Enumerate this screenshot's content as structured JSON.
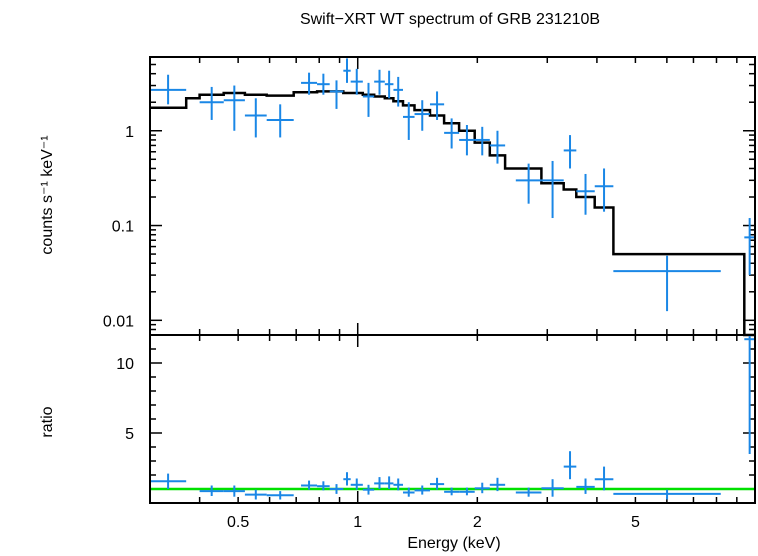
{
  "chart_data": [
    {
      "type": "scatter",
      "title": "Swift−XRT WT spectrum of GRB 231210B",
      "ylabel": "counts s⁻¹ keV⁻¹",
      "xscale": "log",
      "yscale": "log",
      "xlim": [
        0.3,
        10
      ],
      "ylim": [
        0.007,
        6
      ],
      "yticks": [
        {
          "v": 0.01,
          "label": "0.01"
        },
        {
          "v": 0.1,
          "label": "0.1"
        },
        {
          "v": 1,
          "label": "1"
        }
      ],
      "colors": {
        "data": "#1a87e6",
        "model": "#000000"
      },
      "series": [
        {
          "kind": "data",
          "points": [
            {
              "xlo": 0.3,
              "xhi": 0.37,
              "y": 2.7,
              "ylo": 1.9,
              "yhi": 3.9
            },
            {
              "xlo": 0.4,
              "xhi": 0.46,
              "y": 2.0,
              "ylo": 1.3,
              "yhi": 2.9
            },
            {
              "xlo": 0.46,
              "xhi": 0.52,
              "y": 2.1,
              "ylo": 1.0,
              "yhi": 3.0
            },
            {
              "xlo": 0.52,
              "xhi": 0.59,
              "y": 1.45,
              "ylo": 0.85,
              "yhi": 2.2
            },
            {
              "xlo": 0.59,
              "xhi": 0.69,
              "y": 1.3,
              "ylo": 0.85,
              "yhi": 1.9
            },
            {
              "xlo": 0.72,
              "xhi": 0.79,
              "y": 3.2,
              "ylo": 2.4,
              "yhi": 4.1
            },
            {
              "xlo": 0.79,
              "xhi": 0.85,
              "y": 3.1,
              "ylo": 2.4,
              "yhi": 4.0
            },
            {
              "xlo": 0.85,
              "xhi": 0.92,
              "y": 2.6,
              "ylo": 1.7,
              "yhi": 3.4
            },
            {
              "xlo": 0.92,
              "xhi": 0.96,
              "y": 4.3,
              "ylo": 3.2,
              "yhi": 5.8
            },
            {
              "xlo": 0.96,
              "xhi": 1.03,
              "y": 3.3,
              "ylo": 2.4,
              "yhi": 4.5
            },
            {
              "xlo": 1.03,
              "xhi": 1.1,
              "y": 2.3,
              "ylo": 1.4,
              "yhi": 3.2
            },
            {
              "xlo": 1.1,
              "xhi": 1.17,
              "y": 3.3,
              "ylo": 2.4,
              "yhi": 4.4
            },
            {
              "xlo": 1.17,
              "xhi": 1.23,
              "y": 3.1,
              "ylo": 2.2,
              "yhi": 4.3
            },
            {
              "xlo": 1.23,
              "xhi": 1.3,
              "y": 2.7,
              "ylo": 1.8,
              "yhi": 3.7
            },
            {
              "xlo": 1.3,
              "xhi": 1.39,
              "y": 1.4,
              "ylo": 0.8,
              "yhi": 2.0
            },
            {
              "xlo": 1.39,
              "xhi": 1.52,
              "y": 1.5,
              "ylo": 1.0,
              "yhi": 2.1
            },
            {
              "xlo": 1.52,
              "xhi": 1.65,
              "y": 1.9,
              "ylo": 1.3,
              "yhi": 2.6
            },
            {
              "xlo": 1.65,
              "xhi": 1.8,
              "y": 0.95,
              "ylo": 0.65,
              "yhi": 1.35
            },
            {
              "xlo": 1.8,
              "xhi": 1.97,
              "y": 0.8,
              "ylo": 0.55,
              "yhi": 1.15
            },
            {
              "xlo": 1.97,
              "xhi": 2.15,
              "y": 0.8,
              "ylo": 0.55,
              "yhi": 1.1
            },
            {
              "xlo": 2.15,
              "xhi": 2.35,
              "y": 0.7,
              "ylo": 0.45,
              "yhi": 1.0
            },
            {
              "xlo": 2.5,
              "xhi": 2.9,
              "y": 0.3,
              "ylo": 0.17,
              "yhi": 0.45
            },
            {
              "xlo": 2.9,
              "xhi": 3.3,
              "y": 0.3,
              "ylo": 0.12,
              "yhi": 0.48
            },
            {
              "xlo": 3.3,
              "xhi": 3.55,
              "y": 0.62,
              "ylo": 0.4,
              "yhi": 0.9
            },
            {
              "xlo": 3.55,
              "xhi": 3.95,
              "y": 0.23,
              "ylo": 0.13,
              "yhi": 0.35
            },
            {
              "xlo": 3.95,
              "xhi": 4.4,
              "y": 0.26,
              "ylo": 0.14,
              "yhi": 0.4
            },
            {
              "xlo": 4.4,
              "xhi": 8.2,
              "y": 0.033,
              "ylo": 0.0125,
              "yhi": 0.048
            },
            {
              "xlo": 9.4,
              "xhi": 10.0,
              "y": 0.075,
              "ylo": 0.03,
              "yhi": 0.12
            }
          ]
        },
        {
          "kind": "model",
          "steps": [
            {
              "xlo": 0.3,
              "xhi": 0.37,
              "y": 1.75
            },
            {
              "xlo": 0.37,
              "xhi": 0.4,
              "y": 2.2
            },
            {
              "xlo": 0.4,
              "xhi": 0.46,
              "y": 2.4
            },
            {
              "xlo": 0.46,
              "xhi": 0.52,
              "y": 2.5
            },
            {
              "xlo": 0.52,
              "xhi": 0.59,
              "y": 2.4
            },
            {
              "xlo": 0.59,
              "xhi": 0.69,
              "y": 2.35
            },
            {
              "xlo": 0.69,
              "xhi": 0.79,
              "y": 2.55
            },
            {
              "xlo": 0.79,
              "xhi": 0.92,
              "y": 2.6
            },
            {
              "xlo": 0.92,
              "xhi": 1.03,
              "y": 2.5
            },
            {
              "xlo": 1.03,
              "xhi": 1.1,
              "y": 2.4
            },
            {
              "xlo": 1.1,
              "xhi": 1.17,
              "y": 2.3
            },
            {
              "xlo": 1.17,
              "xhi": 1.23,
              "y": 2.2
            },
            {
              "xlo": 1.23,
              "xhi": 1.3,
              "y": 2.05
            },
            {
              "xlo": 1.3,
              "xhi": 1.39,
              "y": 1.85
            },
            {
              "xlo": 1.39,
              "xhi": 1.52,
              "y": 1.65
            },
            {
              "xlo": 1.52,
              "xhi": 1.65,
              "y": 1.45
            },
            {
              "xlo": 1.65,
              "xhi": 1.8,
              "y": 1.2
            },
            {
              "xlo": 1.8,
              "xhi": 1.97,
              "y": 1.0
            },
            {
              "xlo": 1.97,
              "xhi": 2.15,
              "y": 0.75
            },
            {
              "xlo": 2.15,
              "xhi": 2.35,
              "y": 0.55
            },
            {
              "xlo": 2.35,
              "xhi": 2.9,
              "y": 0.4
            },
            {
              "xlo": 2.9,
              "xhi": 3.3,
              "y": 0.28
            },
            {
              "xlo": 3.3,
              "xhi": 3.55,
              "y": 0.24
            },
            {
              "xlo": 3.55,
              "xhi": 3.95,
              "y": 0.2
            },
            {
              "xlo": 3.95,
              "xhi": 4.4,
              "y": 0.155
            },
            {
              "xlo": 4.4,
              "xhi": 9.4,
              "y": 0.05
            },
            {
              "xlo": 9.4,
              "xhi": 10.0,
              "y": 0.0001
            }
          ]
        }
      ]
    },
    {
      "type": "scatter",
      "xlabel": "Energy (keV)",
      "ylabel": "ratio",
      "xscale": "log",
      "yscale": "linear",
      "xlim": [
        0.3,
        10
      ],
      "ylim": [
        0,
        12
      ],
      "xticks": [
        {
          "v": 0.5,
          "label": "0.5"
        },
        {
          "v": 1,
          "label": "1"
        },
        {
          "v": 2,
          "label": "2"
        },
        {
          "v": 5,
          "label": "5"
        }
      ],
      "yticks": [
        {
          "v": 5,
          "label": "5"
        },
        {
          "v": 10,
          "label": "10"
        }
      ],
      "reference_line": 1,
      "colors": {
        "data": "#1a87e6",
        "reference": "#00e000"
      },
      "series": [
        {
          "kind": "data",
          "points": [
            {
              "xlo": 0.3,
              "xhi": 0.37,
              "y": 1.55,
              "ylo": 1.0,
              "yhi": 2.1
            },
            {
              "xlo": 0.4,
              "xhi": 0.46,
              "y": 0.85,
              "ylo": 0.5,
              "yhi": 1.25
            },
            {
              "xlo": 0.46,
              "xhi": 0.52,
              "y": 0.85,
              "ylo": 0.45,
              "yhi": 1.25
            },
            {
              "xlo": 0.52,
              "xhi": 0.59,
              "y": 0.6,
              "ylo": 0.25,
              "yhi": 0.95
            },
            {
              "xlo": 0.59,
              "xhi": 0.69,
              "y": 0.55,
              "ylo": 0.25,
              "yhi": 0.85
            },
            {
              "xlo": 0.72,
              "xhi": 0.79,
              "y": 1.25,
              "ylo": 0.95,
              "yhi": 1.6
            },
            {
              "xlo": 0.79,
              "xhi": 0.85,
              "y": 1.2,
              "ylo": 0.9,
              "yhi": 1.55
            },
            {
              "xlo": 0.85,
              "xhi": 0.92,
              "y": 1.0,
              "ylo": 0.65,
              "yhi": 1.35
            },
            {
              "xlo": 0.92,
              "xhi": 0.96,
              "y": 1.7,
              "ylo": 1.25,
              "yhi": 2.2
            },
            {
              "xlo": 0.96,
              "xhi": 1.03,
              "y": 1.3,
              "ylo": 0.95,
              "yhi": 1.75
            },
            {
              "xlo": 1.03,
              "xhi": 1.1,
              "y": 0.95,
              "ylo": 0.6,
              "yhi": 1.3
            },
            {
              "xlo": 1.1,
              "xhi": 1.17,
              "y": 1.4,
              "ylo": 1.0,
              "yhi": 1.85
            },
            {
              "xlo": 1.17,
              "xhi": 1.23,
              "y": 1.4,
              "ylo": 1.0,
              "yhi": 1.9
            },
            {
              "xlo": 1.23,
              "xhi": 1.3,
              "y": 1.3,
              "ylo": 0.9,
              "yhi": 1.75
            },
            {
              "xlo": 1.3,
              "xhi": 1.39,
              "y": 0.75,
              "ylo": 0.45,
              "yhi": 1.1
            },
            {
              "xlo": 1.39,
              "xhi": 1.52,
              "y": 0.9,
              "ylo": 0.6,
              "yhi": 1.25
            },
            {
              "xlo": 1.52,
              "xhi": 1.65,
              "y": 1.35,
              "ylo": 0.95,
              "yhi": 1.8
            },
            {
              "xlo": 1.65,
              "xhi": 1.8,
              "y": 0.8,
              "ylo": 0.55,
              "yhi": 1.1
            },
            {
              "xlo": 1.8,
              "xhi": 1.97,
              "y": 0.8,
              "ylo": 0.55,
              "yhi": 1.1
            },
            {
              "xlo": 1.97,
              "xhi": 2.15,
              "y": 1.05,
              "ylo": 0.7,
              "yhi": 1.45
            },
            {
              "xlo": 2.15,
              "xhi": 2.35,
              "y": 1.3,
              "ylo": 0.85,
              "yhi": 1.8
            },
            {
              "xlo": 2.5,
              "xhi": 2.9,
              "y": 0.75,
              "ylo": 0.45,
              "yhi": 1.1
            },
            {
              "xlo": 2.9,
              "xhi": 3.3,
              "y": 1.05,
              "ylo": 0.45,
              "yhi": 1.7
            },
            {
              "xlo": 3.3,
              "xhi": 3.55,
              "y": 2.6,
              "ylo": 1.7,
              "yhi": 3.7
            },
            {
              "xlo": 3.55,
              "xhi": 3.95,
              "y": 1.15,
              "ylo": 0.65,
              "yhi": 1.75
            },
            {
              "xlo": 3.95,
              "xhi": 4.4,
              "y": 1.7,
              "ylo": 0.9,
              "yhi": 2.6
            },
            {
              "xlo": 4.4,
              "xhi": 8.2,
              "y": 0.65,
              "ylo": 0.25,
              "yhi": 0.95
            },
            {
              "xlo": 9.4,
              "xhi": 10.0,
              "y": 11.7,
              "ylo": 3.5,
              "yhi": 12.0
            }
          ]
        }
      ]
    }
  ]
}
